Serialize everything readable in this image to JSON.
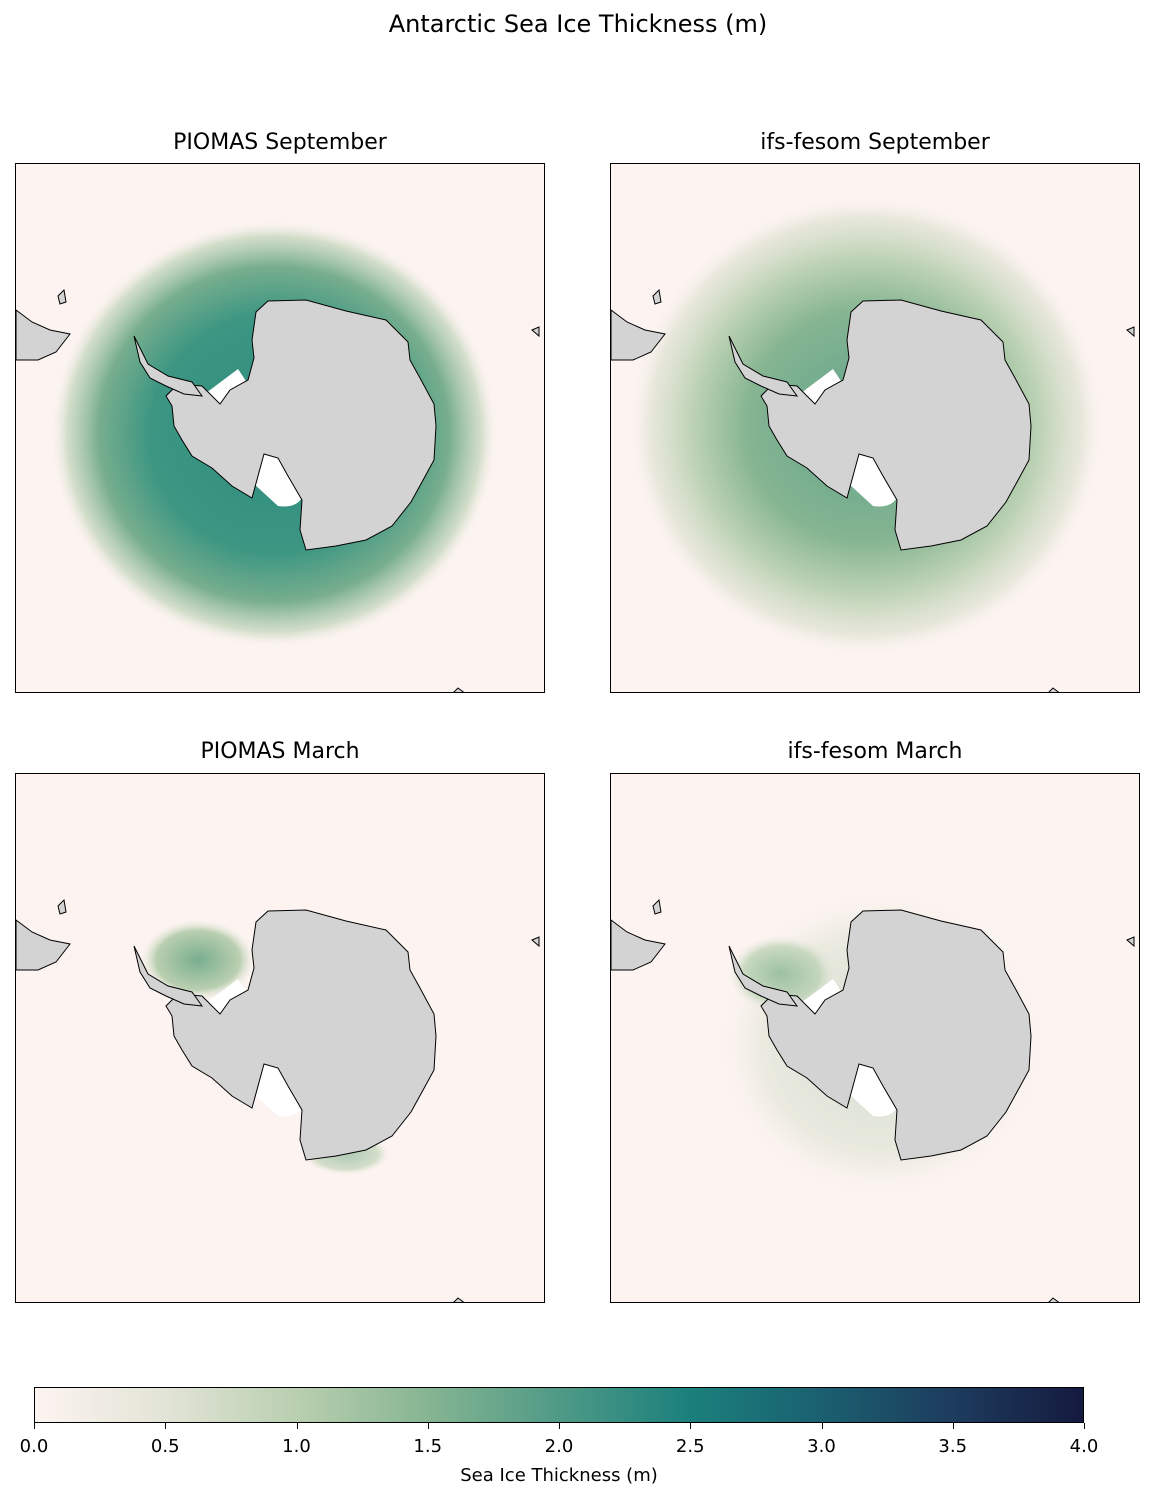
{
  "title": "Antarctic Sea Ice Thickness (m)",
  "panels": [
    {
      "title": "PIOMAS September",
      "ice": "piomas-sep"
    },
    {
      "title": "ifs-fesom September",
      "ice": "fesom-sep"
    },
    {
      "title": "PIOMAS March",
      "ice": "piomas-mar"
    },
    {
      "title": "ifs-fesom March",
      "ice": "fesom-mar"
    }
  ],
  "colorbar": {
    "label": "Sea Ice Thickness (m)",
    "min": 0.0,
    "max": 4.0,
    "ticks": [
      "0.0",
      "0.5",
      "1.0",
      "1.5",
      "2.0",
      "2.5",
      "3.0",
      "3.5",
      "4.0"
    ],
    "colormap": [
      "#fdf4f1",
      "#e2e4d6",
      "#b9cfb0",
      "#86b592",
      "#4f9a86",
      "#1b807c",
      "#1a6070",
      "#1d3c5e",
      "#151a3f"
    ]
  },
  "colors": {
    "land": "#d3d3d3",
    "ocean_no_ice": "#fdf4f1",
    "ice_shelf": "#ffffff",
    "coastline": "#000000"
  }
}
